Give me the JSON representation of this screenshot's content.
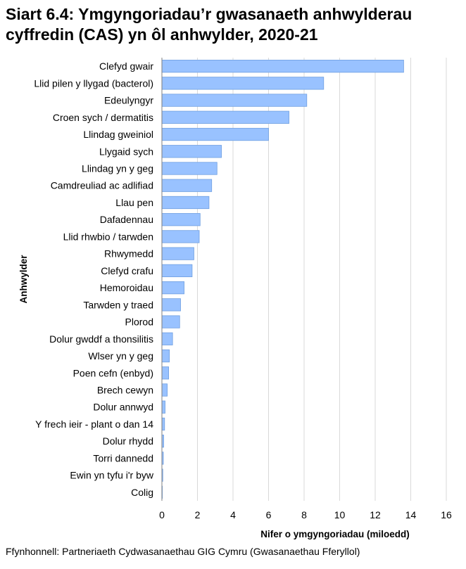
{
  "chart_data": {
    "type": "bar",
    "orientation": "horizontal",
    "title_line1": "Siart 6.4: Ymgyngoriadau’r gwasanaeth anhwylderau",
    "title_line2": "cyffredin (CAS) yn ôl anhwylder, 2020-21",
    "xlabel": "Nifer o ymgyngoriadau (miloedd)",
    "ylabel": "Anhwylder",
    "xlim": [
      0,
      16
    ],
    "xticks": [
      0,
      2,
      4,
      6,
      8,
      10,
      12,
      14,
      16
    ],
    "grid": true,
    "categories": [
      "Clefyd gwair",
      "Llid pilen y llygad (bacterol)",
      "Edeulyngyr",
      "Croen sych / dermatitis",
      "Llindag gweiniol",
      "Llygaid sych",
      "Llindag yn y geg",
      "Camdreuliad ac adlifiad",
      "Llau pen",
      "Dafadennau",
      "Llid rhwbio / tarwden",
      "Rhwymedd",
      "Clefyd crafu",
      "Hemoroidau",
      "Tarwden y traed",
      "Plorod",
      "Dolur gwddf a thonsilitis",
      "Wlser yn y geg",
      "Poen cefn (enbyd)",
      "Brech cewyn",
      "Dolur annwyd",
      "Y frech ieir - plant o dan 14",
      "Dolur rhydd",
      "Torri dannedd",
      "Ewin yn tyfu i'r byw",
      "Colig"
    ],
    "values": [
      13.6,
      9.1,
      8.15,
      7.15,
      6.0,
      3.35,
      3.1,
      2.8,
      2.65,
      2.15,
      2.1,
      1.8,
      1.7,
      1.25,
      1.05,
      1.0,
      0.6,
      0.42,
      0.38,
      0.3,
      0.18,
      0.15,
      0.1,
      0.08,
      0.05,
      0.02
    ],
    "bar_color": "#99c2ff",
    "bar_edge": "#6f9fe0",
    "grid_color": "#d9d9d9"
  },
  "source": "Ffynhonnell: Partneriaeth Cydwasanaethau GIG Cymru (Gwasanaethau Fferyllol)"
}
